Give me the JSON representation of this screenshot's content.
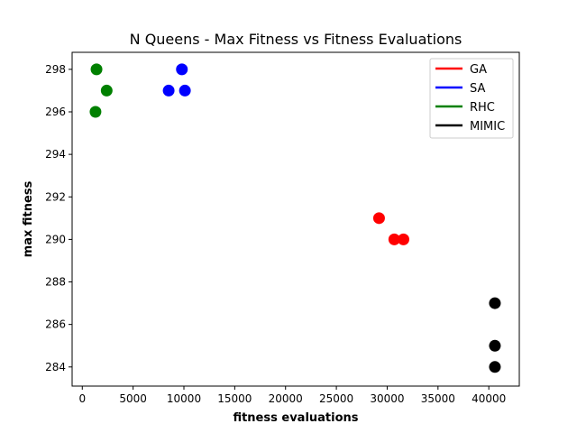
{
  "chart_data": {
    "type": "scatter",
    "title": "N Queens - Max Fitness vs Fitness Evaluations",
    "xlabel": "fitness evaluations",
    "ylabel": "max fitness",
    "xlim": [
      -1000,
      43000
    ],
    "ylim": [
      283.1,
      298.8
    ],
    "xticks": [
      0,
      5000,
      10000,
      15000,
      20000,
      25000,
      30000,
      35000,
      40000
    ],
    "yticks": [
      284,
      286,
      288,
      290,
      292,
      294,
      296,
      298
    ],
    "grid": false,
    "legend_position": "top-right",
    "series": [
      {
        "name": "GA",
        "color": "#ff0000",
        "points": [
          [
            29200,
            291
          ],
          [
            30700,
            290
          ],
          [
            31600,
            290
          ]
        ]
      },
      {
        "name": "SA",
        "color": "#0000ff",
        "points": [
          [
            8500,
            297
          ],
          [
            9800,
            298
          ],
          [
            10100,
            297
          ]
        ]
      },
      {
        "name": "RHC",
        "color": "#008000",
        "points": [
          [
            1400,
            298
          ],
          [
            2400,
            297
          ],
          [
            1300,
            296
          ]
        ]
      },
      {
        "name": "MIMIC",
        "color": "#000000",
        "points": [
          [
            40600,
            287
          ],
          [
            40600,
            285
          ],
          [
            40600,
            284
          ]
        ]
      }
    ]
  }
}
